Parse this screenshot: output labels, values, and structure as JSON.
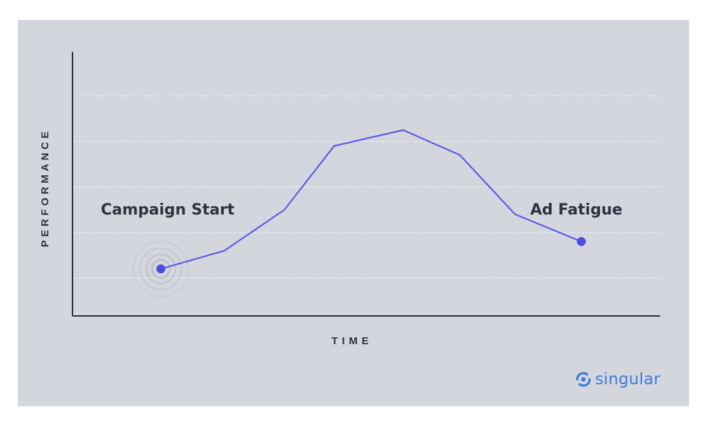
{
  "chart_data": {
    "type": "line",
    "xlabel": "TIME",
    "ylabel": "PERFORMANCE",
    "x": [
      1,
      2,
      3,
      4,
      5,
      6,
      7,
      8
    ],
    "values": [
      1.2,
      1.6,
      2.5,
      3.9,
      4.25,
      3.7,
      2.4,
      1.8
    ],
    "ylim": [
      0,
      6
    ],
    "xlim": [
      0,
      9.1
    ],
    "grid": true,
    "annotations": [
      {
        "text": "Campaign Start",
        "x": 1,
        "y": 1.2
      },
      {
        "text": "Ad Fatigue",
        "x": 8,
        "y": 1.8
      }
    ],
    "colors": {
      "line": "#5b59ea",
      "point": "#4c4be6",
      "background": "#d3d7dd",
      "axis": "#2b2f3a"
    }
  },
  "logo": {
    "text": "singular",
    "color": "#3a7bdc",
    "icon": "singular-logo-icon"
  }
}
